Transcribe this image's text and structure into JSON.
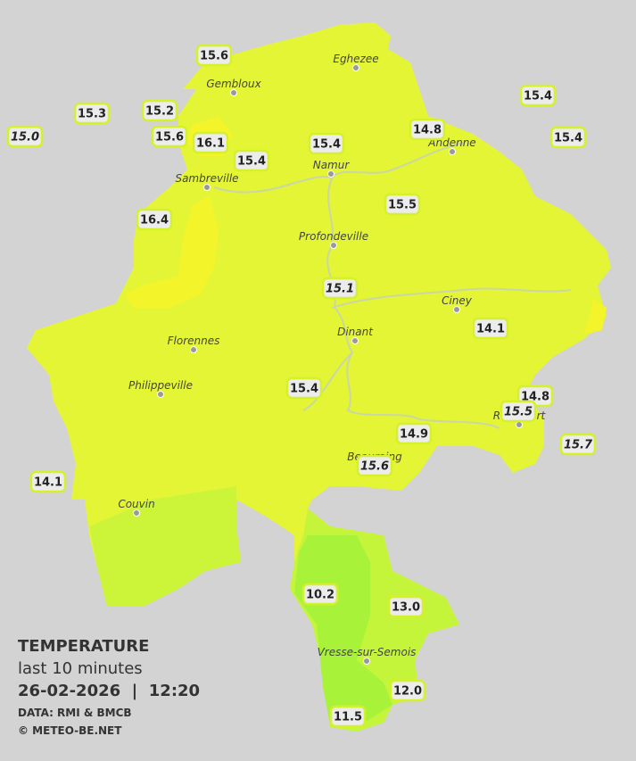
{
  "legend": {
    "title": "TEMPERATURE",
    "subtitle": "last 10 minutes",
    "datetime": "26-02-2026  |  12:20",
    "source": "DATA: RMI & BMCB",
    "copyright": "© METEO-BE.NET"
  },
  "towns": [
    {
      "name": "Eghezee"
    },
    {
      "name": "Gembloux"
    },
    {
      "name": "Andenne"
    },
    {
      "name": "Namur"
    },
    {
      "name": "Sambreville"
    },
    {
      "name": "Profondeville"
    },
    {
      "name": "Ciney"
    },
    {
      "name": "Dinant"
    },
    {
      "name": "Florennes"
    },
    {
      "name": "Philippeville"
    },
    {
      "name": "Rochefort"
    },
    {
      "name": "Beauraing"
    },
    {
      "name": "Couvin"
    },
    {
      "name": "Vresse-sur-Semois"
    }
  ],
  "stations": [
    {
      "value": "15.6",
      "italic": false
    },
    {
      "value": "15.3",
      "italic": false
    },
    {
      "value": "15.0",
      "italic": true
    },
    {
      "value": "15.2",
      "italic": false
    },
    {
      "value": "15.6",
      "italic": false
    },
    {
      "value": "16.1",
      "italic": false
    },
    {
      "value": "15.4",
      "italic": false
    },
    {
      "value": "15.4",
      "italic": false
    },
    {
      "value": "14.8",
      "italic": false
    },
    {
      "value": "15.4",
      "italic": false
    },
    {
      "value": "15.4",
      "italic": false
    },
    {
      "value": "16.4",
      "italic": false
    },
    {
      "value": "15.5",
      "italic": false
    },
    {
      "value": "15.1",
      "italic": true
    },
    {
      "value": "14.1",
      "italic": false
    },
    {
      "value": "15.4",
      "italic": false
    },
    {
      "value": "14.8",
      "italic": false
    },
    {
      "value": "15.5",
      "italic": true
    },
    {
      "value": "14.9",
      "italic": false
    },
    {
      "value": "15.6",
      "italic": true
    },
    {
      "value": "15.7",
      "italic": true
    },
    {
      "value": "14.1",
      "italic": false
    },
    {
      "value": "10.2",
      "italic": false
    },
    {
      "value": "13.0",
      "italic": false
    },
    {
      "value": "12.0",
      "italic": false
    },
    {
      "value": "11.5",
      "italic": false
    }
  ]
}
